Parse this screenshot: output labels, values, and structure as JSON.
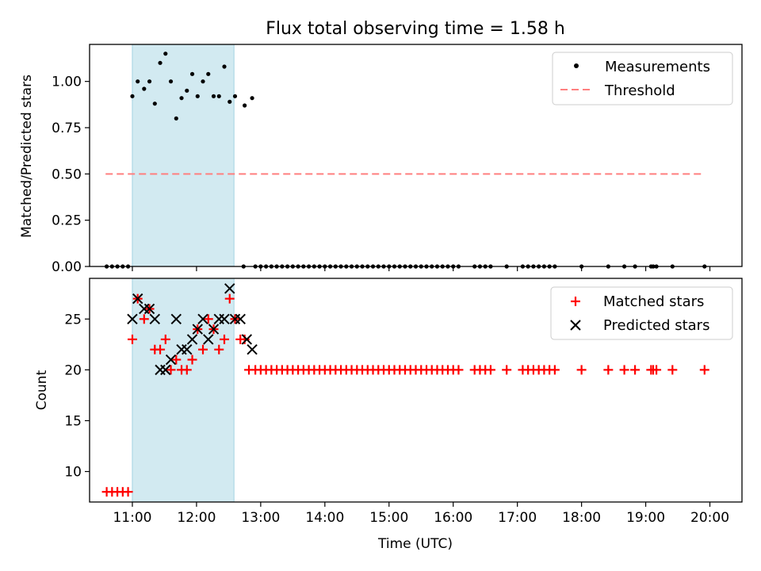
{
  "title": "Flux total observing time = 1.58 h",
  "chart_data": [
    {
      "type": "scatter",
      "panel": "top",
      "title": "Flux total observing time = 1.58 h",
      "xlabel": "",
      "ylabel": "Matched/Predicted stars",
      "xlim": [
        "10:20",
        "20:30"
      ],
      "ylim": [
        0.0,
        1.2
      ],
      "yticks": [
        0.0,
        0.25,
        0.5,
        0.75,
        1.0
      ],
      "ytick_labels": [
        "0.00",
        "0.25",
        "0.50",
        "0.75",
        "1.00"
      ],
      "legend": {
        "position": "top-right",
        "entries": [
          "Measurements",
          "Threshold"
        ]
      },
      "shaded_interval": [
        "11:00",
        "12:35"
      ],
      "colors": {
        "shade": "#add8e6",
        "measurements": "#000000",
        "threshold": "#ff7f7f"
      },
      "threshold": {
        "name": "Threshold",
        "value": 0.5,
        "x_range": [
          "10:35",
          "19:55"
        ]
      },
      "series": [
        {
          "name": "Measurements",
          "x": [
            "10:36",
            "10:41",
            "10:46",
            "10:51",
            "10:56",
            "11:00",
            "11:05",
            "11:11",
            "11:16",
            "11:21",
            "11:26",
            "11:31",
            "11:36",
            "11:41",
            "11:46",
            "11:51",
            "11:56",
            "12:01",
            "12:06",
            "12:11",
            "12:16",
            "12:21",
            "12:26",
            "12:31",
            "12:36",
            "12:45",
            "12:52",
            "12:44",
            "12:55",
            "13:00",
            "13:05",
            "13:10",
            "13:15",
            "13:20",
            "13:25",
            "13:30",
            "13:35",
            "13:40",
            "13:45",
            "13:50",
            "13:55",
            "14:00",
            "14:05",
            "14:10",
            "14:15",
            "14:20",
            "14:25",
            "14:30",
            "14:35",
            "14:40",
            "14:45",
            "14:50",
            "14:55",
            "15:00",
            "15:05",
            "15:10",
            "15:15",
            "15:20",
            "15:25",
            "15:30",
            "15:35",
            "15:40",
            "15:45",
            "15:50",
            "15:55",
            "16:00",
            "16:05",
            "16:20",
            "16:25",
            "16:30",
            "16:35",
            "16:50",
            "17:05",
            "17:10",
            "17:15",
            "17:20",
            "17:25",
            "17:30",
            "17:35",
            "18:00",
            "18:25",
            "18:40",
            "18:50",
            "19:05",
            "19:07",
            "19:10",
            "19:25",
            "19:55"
          ],
          "y": [
            0,
            0,
            0,
            0,
            0,
            0.92,
            1.0,
            0.96,
            1.0,
            0.88,
            1.1,
            1.15,
            1.0,
            0.8,
            0.91,
            0.95,
            1.04,
            0.92,
            1.0,
            1.04,
            0.92,
            0.92,
            1.08,
            0.89,
            0.92,
            0.87,
            0.91,
            0,
            0,
            0,
            0,
            0,
            0,
            0,
            0,
            0,
            0,
            0,
            0,
            0,
            0,
            0,
            0,
            0,
            0,
            0,
            0,
            0,
            0,
            0,
            0,
            0,
            0,
            0,
            0,
            0,
            0,
            0,
            0,
            0,
            0,
            0,
            0,
            0,
            0,
            0,
            0,
            0,
            0,
            0,
            0,
            0,
            0,
            0,
            0,
            0,
            0,
            0,
            0,
            0,
            0,
            0,
            0,
            0,
            0,
            0,
            0,
            0
          ]
        }
      ]
    },
    {
      "type": "scatter",
      "panel": "bottom",
      "title": "",
      "xlabel": "Time (UTC)",
      "ylabel": "Count",
      "xlim": [
        "10:20",
        "20:30"
      ],
      "ylim": [
        7.0,
        29.0
      ],
      "xticks": [
        "11:00",
        "12:00",
        "13:00",
        "14:00",
        "15:00",
        "16:00",
        "17:00",
        "18:00",
        "19:00",
        "20:00"
      ],
      "yticks": [
        10,
        15,
        20,
        25
      ],
      "legend": {
        "position": "top-right",
        "entries": [
          "Matched stars",
          "Predicted stars"
        ]
      },
      "shaded_interval": [
        "11:00",
        "12:35"
      ],
      "colors": {
        "shade": "#add8e6",
        "matched": "#ff0000",
        "predicted": "#000000"
      },
      "series": [
        {
          "name": "Matched stars",
          "x": [
            "10:36",
            "10:41",
            "10:46",
            "10:51",
            "10:56",
            "11:00",
            "11:05",
            "11:11",
            "11:16",
            "11:21",
            "11:26",
            "11:31",
            "11:36",
            "11:41",
            "11:46",
            "11:51",
            "11:56",
            "12:01",
            "12:06",
            "12:11",
            "12:16",
            "12:21",
            "12:26",
            "12:31",
            "12:36",
            "12:41",
            "12:45",
            "12:49",
            "12:55",
            "13:00",
            "13:05",
            "13:10",
            "13:15",
            "13:20",
            "13:25",
            "13:30",
            "13:35",
            "13:40",
            "13:45",
            "13:50",
            "13:55",
            "14:00",
            "14:05",
            "14:10",
            "14:15",
            "14:20",
            "14:25",
            "14:30",
            "14:35",
            "14:40",
            "14:45",
            "14:50",
            "14:55",
            "15:00",
            "15:05",
            "15:10",
            "15:15",
            "15:20",
            "15:25",
            "15:30",
            "15:35",
            "15:40",
            "15:45",
            "15:50",
            "15:55",
            "16:00",
            "16:05",
            "16:20",
            "16:25",
            "16:30",
            "16:35",
            "16:50",
            "17:05",
            "17:10",
            "17:15",
            "17:20",
            "17:25",
            "17:30",
            "17:35",
            "18:00",
            "18:25",
            "18:40",
            "18:50",
            "19:05",
            "19:07",
            "19:10",
            "19:25",
            "19:55"
          ],
          "y": [
            8,
            8,
            8,
            8,
            8,
            23,
            27,
            25,
            26,
            22,
            22,
            23,
            20,
            21,
            20,
            20,
            21,
            24,
            22,
            25,
            24,
            22,
            23,
            27,
            25,
            23,
            23,
            20,
            20,
            20,
            20,
            20,
            20,
            20,
            20,
            20,
            20,
            20,
            20,
            20,
            20,
            20,
            20,
            20,
            20,
            20,
            20,
            20,
            20,
            20,
            20,
            20,
            20,
            20,
            20,
            20,
            20,
            20,
            20,
            20,
            20,
            20,
            20,
            20,
            20,
            20,
            20,
            20,
            20,
            20,
            20,
            20,
            20,
            20,
            20,
            20,
            20,
            20,
            20,
            20,
            20,
            20,
            20,
            20,
            20,
            20,
            20,
            20
          ]
        },
        {
          "name": "Predicted stars",
          "x": [
            "11:00",
            "11:05",
            "11:11",
            "11:16",
            "11:21",
            "11:26",
            "11:31",
            "11:36",
            "11:41",
            "11:46",
            "11:51",
            "11:56",
            "12:01",
            "12:06",
            "12:11",
            "12:16",
            "12:21",
            "12:26",
            "12:31",
            "12:36",
            "12:41",
            "12:47",
            "12:52"
          ],
          "y": [
            25,
            27,
            26,
            26,
            25,
            20,
            20,
            21,
            25,
            22,
            22,
            23,
            24,
            25,
            23,
            24,
            25,
            25,
            28,
            25,
            25,
            23,
            22
          ]
        }
      ]
    }
  ]
}
